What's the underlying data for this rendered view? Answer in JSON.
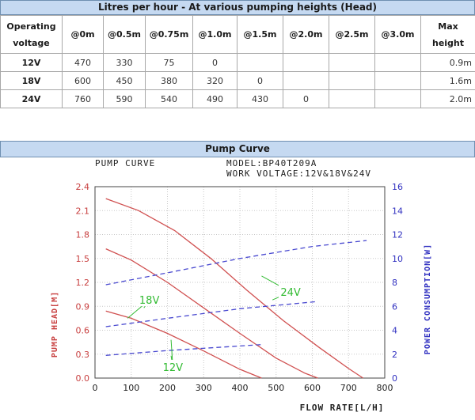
{
  "table": {
    "title": "Litres per hour - At various pumping heights (Head)",
    "header_first_line1": "Operating",
    "header_first_line2": "voltage",
    "headers": [
      "@0m",
      "@0.5m",
      "@0.75m",
      "@1.0m",
      "@1.5m",
      "@2.0m",
      "@2.5m",
      "@3.0m"
    ],
    "header_last_line1": "Max",
    "header_last_line2": "height",
    "rows": [
      {
        "voltage": "12V",
        "values": [
          "470",
          "330",
          "75",
          "0",
          "",
          "",
          "",
          ""
        ],
        "max": "0.9m"
      },
      {
        "voltage": "18V",
        "values": [
          "600",
          "450",
          "380",
          "320",
          "0",
          "",
          "",
          ""
        ],
        "max": "1.6m"
      },
      {
        "voltage": "24V",
        "values": [
          "760",
          "590",
          "540",
          "490",
          "430",
          "0",
          "",
          ""
        ],
        "max": "2.0m"
      }
    ]
  },
  "section_title": "Pump Curve",
  "chart_data": {
    "type": "line",
    "title": "PUMP CURVE",
    "model": "MODEL:BP40T209A",
    "work_voltage": "WORK VOLTAGE:12V&18V&24V",
    "xlabel": "FLOW RATE[L/H]",
    "ylabel_left": "PUMP HEAD[M]",
    "ylabel_right": "POWER CONSUMPTION[W]",
    "xlim": [
      0,
      800
    ],
    "ylim_left": [
      0,
      2.4
    ],
    "ylim_right": [
      0,
      16
    ],
    "x_ticks": [
      "0",
      "100",
      "200",
      "300",
      "400",
      "500",
      "600",
      "700",
      "800"
    ],
    "y_ticks_left": [
      "0.0",
      "0.3",
      "0.6",
      "0.9",
      "1.2",
      "1.5",
      "1.8",
      "2.1",
      "2.4"
    ],
    "y_ticks_right": [
      "0",
      "2",
      "4",
      "6",
      "8",
      "10",
      "12",
      "14",
      "16"
    ],
    "grid": true,
    "head_color": "#d05050",
    "power_color": "#4a4ad0",
    "callout_color": "#33bb33",
    "head_series": [
      {
        "name": "24V",
        "x": [
          30,
          120,
          220,
          320,
          420,
          520,
          620,
          700,
          740
        ],
        "y": [
          2.25,
          2.1,
          1.85,
          1.5,
          1.1,
          0.72,
          0.38,
          0.12,
          0.0
        ]
      },
      {
        "name": "18V",
        "x": [
          30,
          100,
          200,
          300,
          400,
          500,
          580,
          615
        ],
        "y": [
          1.62,
          1.48,
          1.2,
          0.88,
          0.56,
          0.25,
          0.06,
          0.0
        ]
      },
      {
        "name": "12V",
        "x": [
          30,
          100,
          200,
          300,
          400,
          460
        ],
        "y": [
          0.84,
          0.75,
          0.56,
          0.34,
          0.11,
          0.0
        ]
      }
    ],
    "power_series": [
      {
        "name": "24V",
        "x": [
          30,
          200,
          400,
          600,
          750
        ],
        "y": [
          7.8,
          8.8,
          10.0,
          11.0,
          11.5
        ]
      },
      {
        "name": "18V",
        "x": [
          30,
          200,
          400,
          615
        ],
        "y": [
          4.3,
          5.0,
          5.8,
          6.4
        ]
      },
      {
        "name": "12V",
        "x": [
          30,
          200,
          460
        ],
        "y": [
          1.9,
          2.3,
          2.8
        ]
      }
    ],
    "callouts": [
      {
        "label": "24V",
        "x": 540,
        "y": 1.08,
        "targets": [
          [
            490,
            0.98
          ],
          [
            460,
            1.28
          ]
        ]
      },
      {
        "label": "18V",
        "x": 150,
        "y": 0.98,
        "targets": [
          [
            90,
            0.75
          ],
          [
            135,
            0.88
          ]
        ]
      },
      {
        "label": "12V",
        "x": 215,
        "y": 0.14,
        "targets": [
          [
            210,
            0.48
          ],
          [
            210,
            0.28
          ]
        ]
      }
    ]
  }
}
